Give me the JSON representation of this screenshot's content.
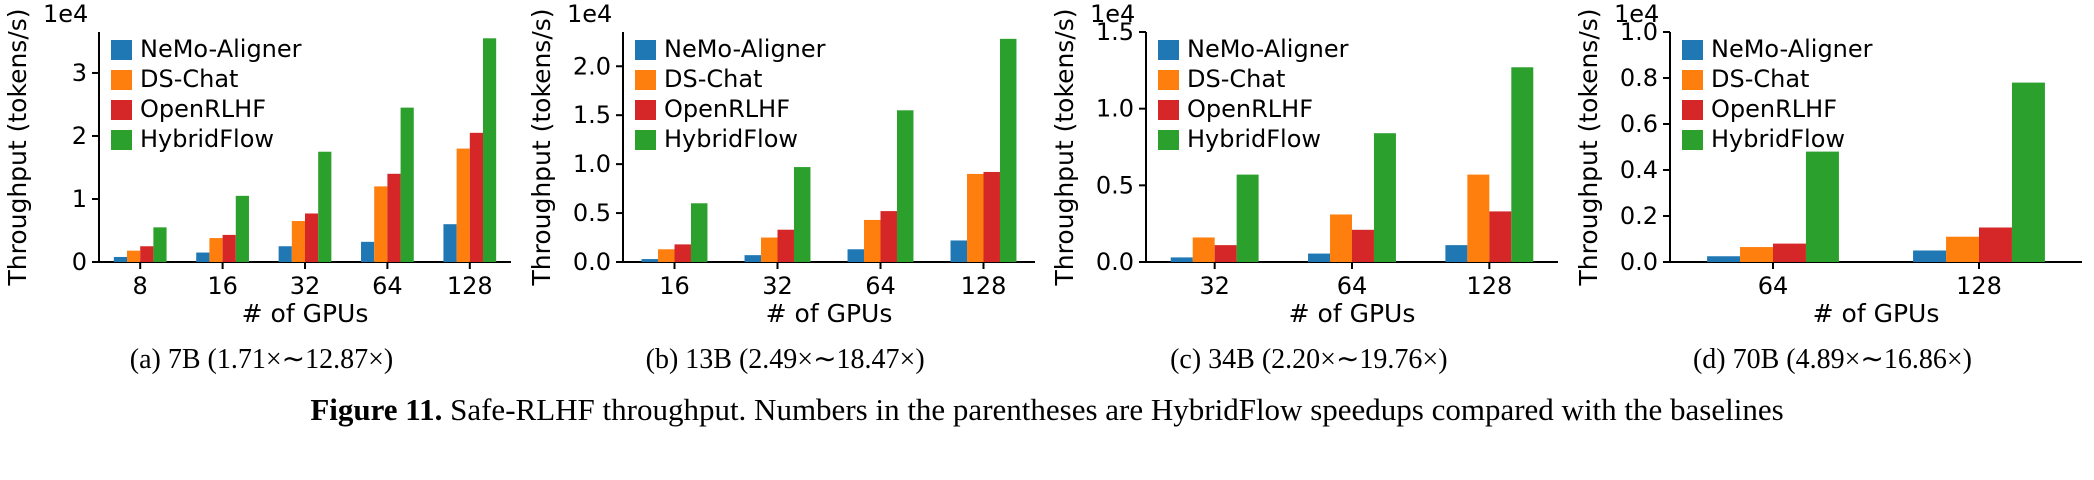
{
  "figure_caption": {
    "label": "Figure 11.",
    "text": " Safe-RLHF throughput. Numbers in the parentheses are HybridFlow speedups compared with the baselines"
  },
  "series_colors": {
    "NeMo-Aligner": "#1f77b4",
    "DS-Chat": "#ff7f0e",
    "OpenRLHF": "#d62728",
    "HybridFlow": "#2ca02c"
  },
  "chart_data": [
    {
      "type": "bar",
      "caption": "(a) 7B (1.71×∼12.87×)",
      "categories": [
        "8",
        "16",
        "32",
        "64",
        "128"
      ],
      "series": [
        {
          "name": "NeMo-Aligner",
          "color": "#1f77b4",
          "values": [
            0.08,
            0.15,
            0.25,
            0.32,
            0.6
          ]
        },
        {
          "name": "DS-Chat",
          "color": "#ff7f0e",
          "values": [
            0.18,
            0.38,
            0.65,
            1.2,
            1.8
          ]
        },
        {
          "name": "OpenRLHF",
          "color": "#d62728",
          "values": [
            0.25,
            0.43,
            0.77,
            1.4,
            2.05
          ]
        },
        {
          "name": "HybridFlow",
          "color": "#2ca02c",
          "values": [
            0.55,
            1.05,
            1.75,
            2.45,
            3.55
          ]
        }
      ],
      "ylabel": "Throughput (tokens/s)",
      "xlabel": "# of GPUs",
      "offset_text": "1e4",
      "ylim": [
        0,
        3.65
      ],
      "yticks": [
        0,
        1,
        2,
        3
      ],
      "ytick_decimals": 0,
      "legend_position": "upper left",
      "grid": false
    },
    {
      "type": "bar",
      "caption": "(b) 13B (2.49×∼18.47×)",
      "categories": [
        "16",
        "32",
        "64",
        "128"
      ],
      "series": [
        {
          "name": "NeMo-Aligner",
          "color": "#1f77b4",
          "values": [
            0.03,
            0.07,
            0.13,
            0.22
          ]
        },
        {
          "name": "DS-Chat",
          "color": "#ff7f0e",
          "values": [
            0.13,
            0.25,
            0.43,
            0.9
          ]
        },
        {
          "name": "OpenRLHF",
          "color": "#d62728",
          "values": [
            0.18,
            0.33,
            0.52,
            0.92
          ]
        },
        {
          "name": "HybridFlow",
          "color": "#2ca02c",
          "values": [
            0.6,
            0.97,
            1.55,
            2.28
          ]
        }
      ],
      "ylabel": "Throughput (tokens/s)",
      "xlabel": "# of GPUs",
      "offset_text": "1e4",
      "ylim": [
        0,
        2.35
      ],
      "yticks": [
        0.0,
        0.5,
        1.0,
        1.5,
        2.0
      ],
      "ytick_decimals": 1,
      "legend_position": "upper left",
      "grid": false
    },
    {
      "type": "bar",
      "caption": "(c) 34B (2.20×∼19.76×)",
      "categories": [
        "32",
        "64",
        "128"
      ],
      "series": [
        {
          "name": "NeMo-Aligner",
          "color": "#1f77b4",
          "values": [
            0.03,
            0.055,
            0.11
          ]
        },
        {
          "name": "DS-Chat",
          "color": "#ff7f0e",
          "values": [
            0.16,
            0.31,
            0.57
          ]
        },
        {
          "name": "OpenRLHF",
          "color": "#d62728",
          "values": [
            0.11,
            0.21,
            0.33
          ]
        },
        {
          "name": "HybridFlow",
          "color": "#2ca02c",
          "values": [
            0.57,
            0.84,
            1.27
          ]
        }
      ],
      "ylabel": "Throughput (tokens/s)",
      "xlabel": "# of GPUs",
      "offset_text": "1e4",
      "ylim": [
        0,
        1.5
      ],
      "yticks": [
        0.0,
        0.5,
        1.0,
        1.5
      ],
      "ytick_decimals": 1,
      "legend_position": "upper left",
      "grid": false
    },
    {
      "type": "bar",
      "caption": "(d) 70B (4.89×∼16.86×)",
      "categories": [
        "64",
        "128"
      ],
      "series": [
        {
          "name": "NeMo-Aligner",
          "color": "#1f77b4",
          "values": [
            0.025,
            0.05
          ]
        },
        {
          "name": "DS-Chat",
          "color": "#ff7f0e",
          "values": [
            0.065,
            0.11
          ]
        },
        {
          "name": "OpenRLHF",
          "color": "#d62728",
          "values": [
            0.08,
            0.15
          ]
        },
        {
          "name": "HybridFlow",
          "color": "#2ca02c",
          "values": [
            0.48,
            0.78
          ]
        }
      ],
      "ylabel": "Throughput (tokens/s)",
      "xlabel": "# of GPUs",
      "offset_text": "1e4",
      "ylim": [
        0,
        1.0
      ],
      "yticks": [
        0.0,
        0.2,
        0.4,
        0.6,
        0.8,
        1.0
      ],
      "ytick_decimals": 1,
      "legend_position": "upper left",
      "grid": false
    }
  ]
}
